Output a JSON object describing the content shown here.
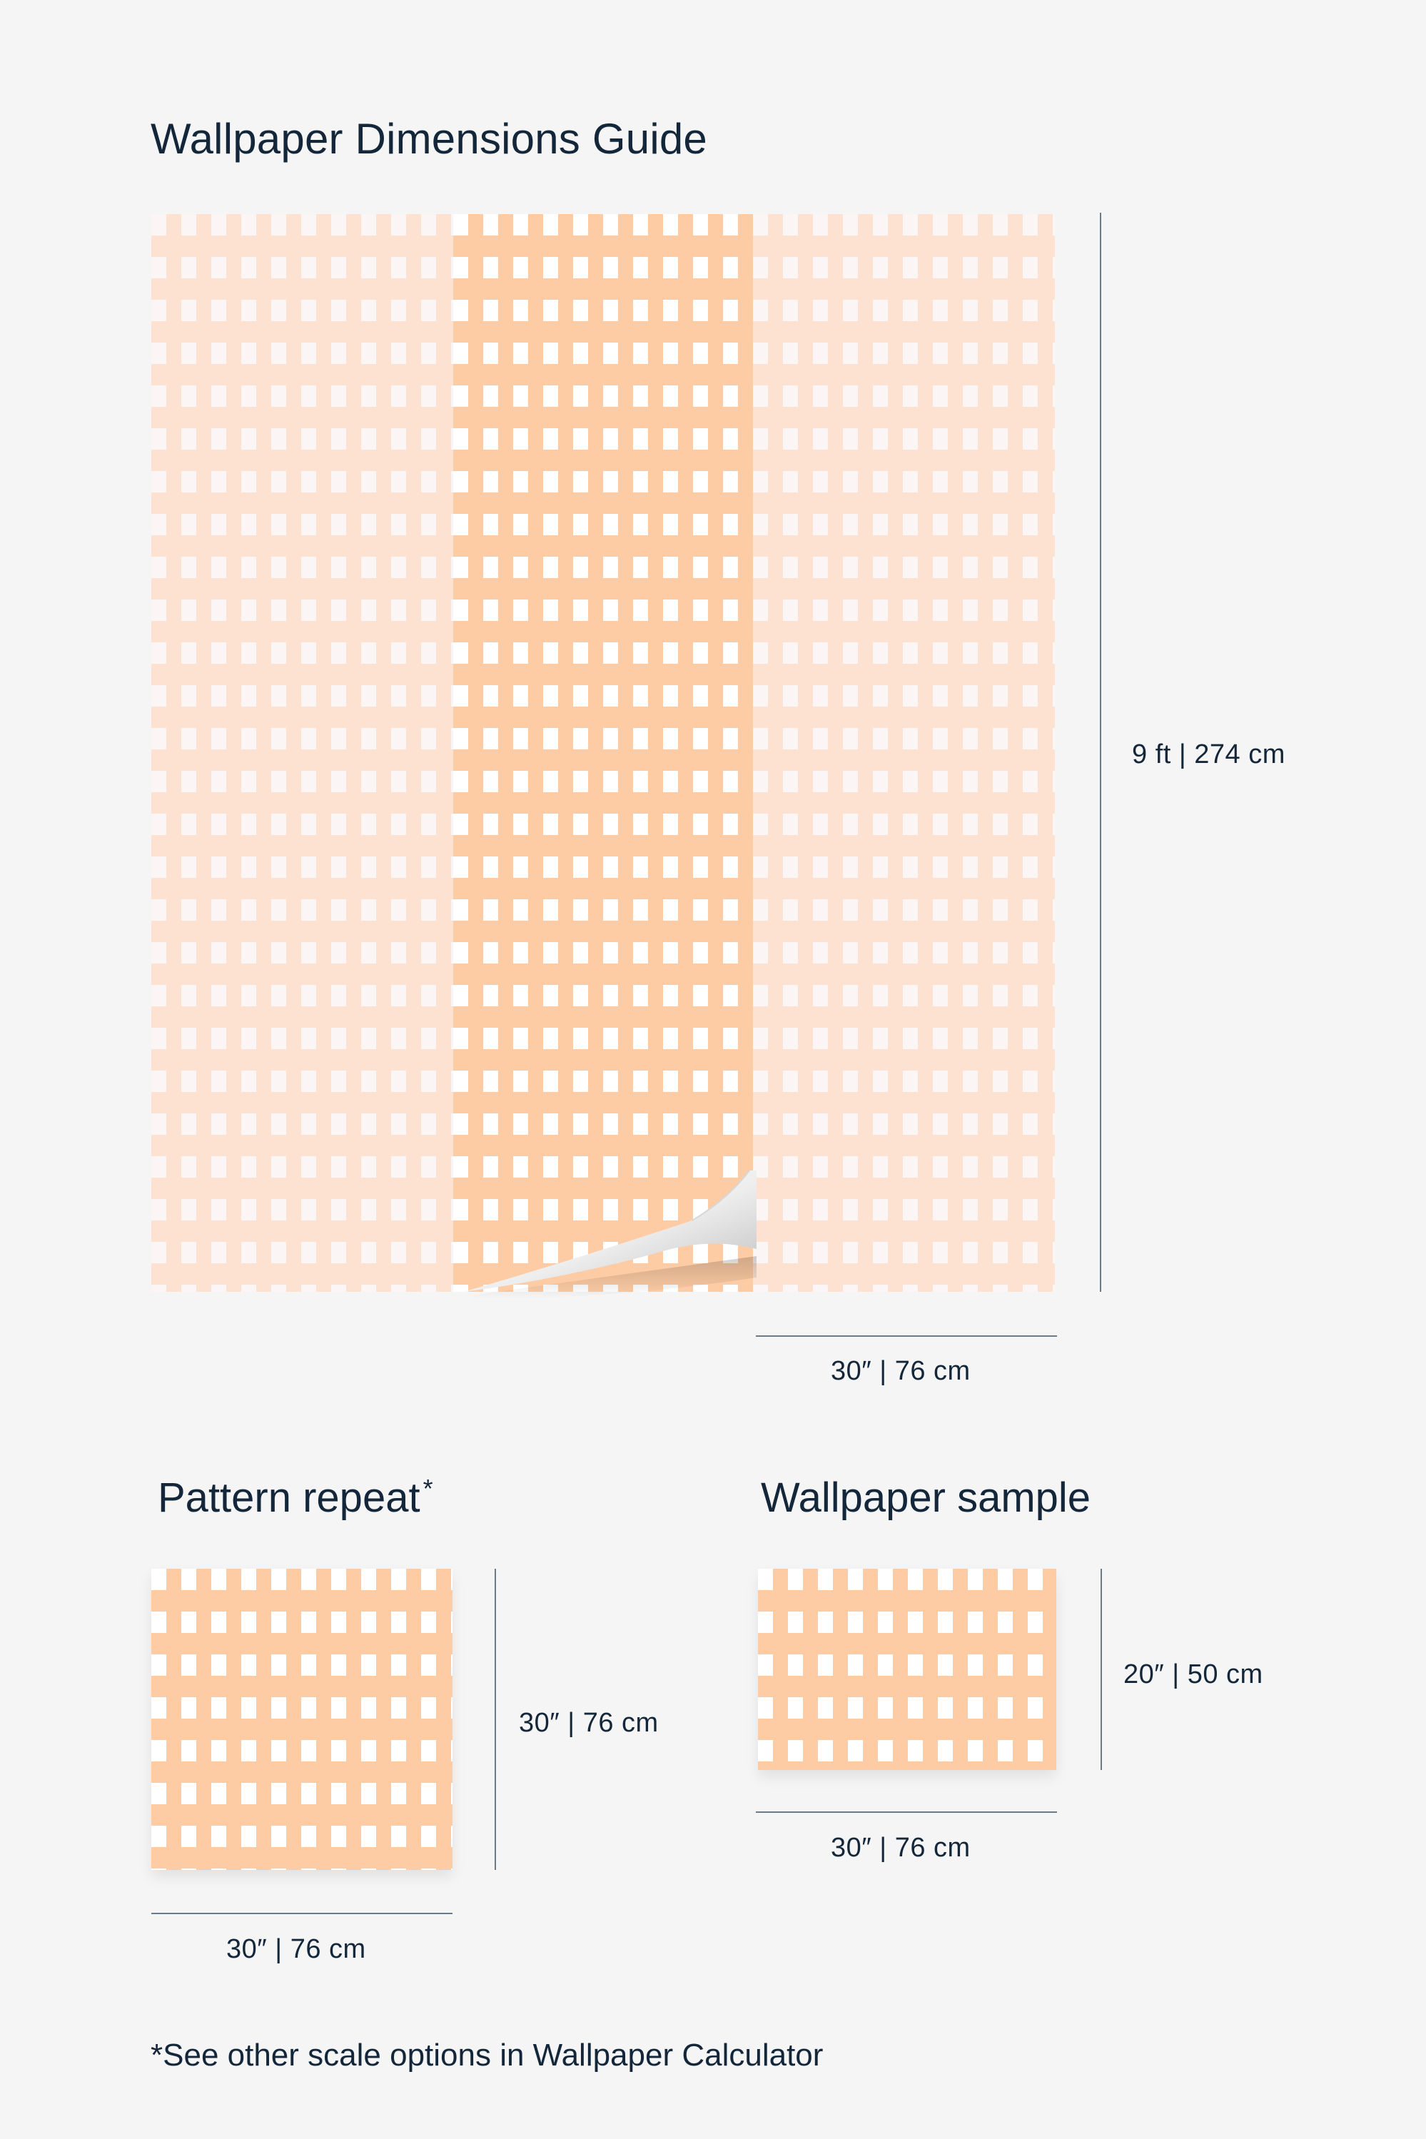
{
  "header": {
    "title": "Wallpaper Dimensions Guide"
  },
  "main_guide": {
    "height_label": "9 ft | 274 cm",
    "width_label": "30″ | 76 cm"
  },
  "pattern_repeat": {
    "title": "Pattern repeat",
    "asterisk": "*",
    "height_label": "30″ | 76 cm",
    "width_label": "30″ | 76 cm"
  },
  "wallpaper_sample": {
    "title": "Wallpaper sample",
    "height_label": "20″ | 50 cm",
    "width_label": "30″ | 76 cm"
  },
  "footnote": "*See other scale options in Wallpaper Calculator",
  "colors": {
    "background": "#f5f5f5",
    "diamond": "#fecca4",
    "diamond_light": "#fde2d2",
    "text": "#14273a",
    "guide_line": "#6b7b8a"
  }
}
